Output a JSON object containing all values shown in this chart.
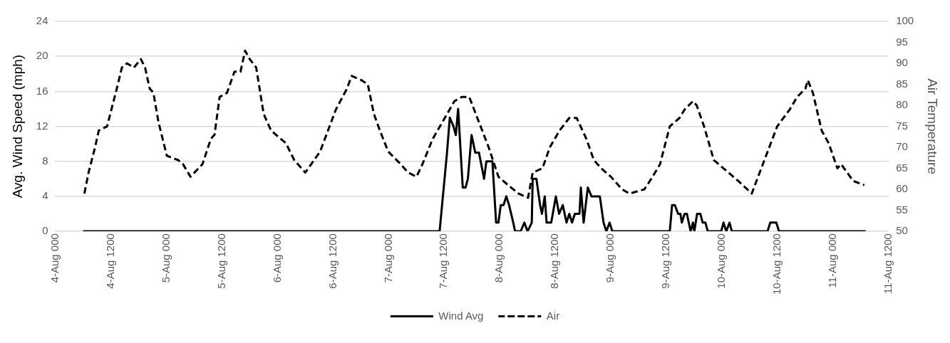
{
  "chart_data": {
    "type": "line",
    "ylabel": "Avg. Wind Speed (mph)",
    "y2label": "Air Temperature",
    "xlim": [
      "--08-04T00:00",
      "--08-11T12:00"
    ],
    "xticks": [
      {
        "value": "--08-04T00:00",
        "label": "4-Aug 000"
      },
      {
        "value": "--08-04T12:00",
        "label": "4-Aug 1200"
      },
      {
        "value": "--08-05T00:00",
        "label": "5-Aug 000"
      },
      {
        "value": "--08-05T12:00",
        "label": "5-Aug 1200"
      },
      {
        "value": "--08-06T00:00",
        "label": "6-Aug 000"
      },
      {
        "value": "--08-06T12:00",
        "label": "6-Aug 1200"
      },
      {
        "value": "--08-07T00:00",
        "label": "7-Aug 000"
      },
      {
        "value": "--08-07T12:00",
        "label": "7-Aug 1200"
      },
      {
        "value": "--08-08T00:00",
        "label": "8-Aug 000"
      },
      {
        "value": "--08-08T12:00",
        "label": "8-Aug 1200"
      },
      {
        "value": "--08-09T00:00",
        "label": "9-Aug 000"
      },
      {
        "value": "--08-09T12:00",
        "label": "9-Aug 1200"
      },
      {
        "value": "--08-10T00:00",
        "label": "10-Aug 000"
      },
      {
        "value": "--08-10T12:00",
        "label": "10-Aug 1200"
      },
      {
        "value": "--08-11T00:00",
        "label": "11-Aug 000"
      },
      {
        "value": "--08-11T12:00",
        "label": "11-Aug 1200"
      }
    ],
    "ylim": [
      0,
      24
    ],
    "yticks": [
      0,
      4,
      8,
      12,
      16,
      20,
      24
    ],
    "y2lim": [
      50,
      100
    ],
    "y2ticks": [
      50,
      55,
      60,
      65,
      70,
      75,
      80,
      85,
      90,
      95,
      100
    ],
    "grid": "y",
    "legend": "bottom",
    "marker": "none",
    "series": [
      {
        "name": "Wind Avg",
        "color": "#000000",
        "line_style": "solid",
        "x": [
          "--08-04T06:00",
          "--08-07T11:00",
          "--08-07T12:36",
          "--08-07T13:12",
          "--08-07T14:00",
          "--08-07T14:30",
          "--08-07T15:00",
          "--08-07T16:00",
          "--08-07T16:36",
          "--08-07T17:06",
          "--08-07T17:54",
          "--08-07T18:42",
          "--08-07T19:30",
          "--08-07T20:36",
          "--08-07T21:06",
          "--08-07T21:54",
          "--08-07T22:24",
          "--08-07T23:12",
          "--08-07T23:42",
          "--08-08T00:12",
          "--08-08T00:48",
          "--08-08T01:24",
          "--08-08T02:00",
          "--08-08T02:54",
          "--08-08T03:18",
          "--08-08T04:30",
          "--08-08T05:18",
          "--08-08T06:00",
          "--08-08T06:54",
          "--08-08T07:06",
          "--08-08T07:54",
          "--08-08T08:42",
          "--08-08T09:06",
          "--08-08T09:42",
          "--08-08T10:06",
          "--08-08T11:06",
          "--08-08T12:06",
          "--08-08T12:48",
          "--08-08T13:36",
          "--08-08T14:24",
          "--08-08T15:00",
          "--08-08T15:36",
          "--08-08T16:12",
          "--08-08T17:12",
          "--08-08T17:30",
          "--08-08T18:06",
          "--08-08T19:00",
          "--08-08T19:48",
          "--08-08T21:36",
          "--08-08T22:24",
          "--08-08T23:00",
          "--08-08T23:42",
          "--08-09T00:18",
          "--08-09T12:42",
          "--08-09T13:12",
          "--08-09T13:48",
          "--08-09T14:30",
          "--08-09T15:00",
          "--08-09T15:18",
          "--08-09T15:54",
          "--08-09T16:24",
          "--08-09T17:12",
          "--08-09T17:42",
          "--08-09T18:00",
          "--08-09T18:36",
          "--08-09T19:18",
          "--08-09T19:48",
          "--08-09T20:24",
          "--08-09T20:54",
          "--08-09T23:48",
          "--08-10T00:18",
          "--08-10T00:54",
          "--08-10T01:36",
          "--08-10T02:06",
          "--08-10T09:48",
          "--08-10T10:24",
          "--08-10T11:42",
          "--08-10T12:18",
          "--08-11T07:00"
        ],
        "values": [
          0,
          0,
          9,
          13,
          12,
          11,
          14,
          5,
          5,
          6,
          11,
          9,
          9,
          6,
          8,
          8,
          8,
          1,
          1,
          3,
          3,
          4,
          3,
          1,
          0,
          0,
          1,
          0,
          1,
          6,
          6,
          3,
          2,
          4,
          1,
          1,
          4,
          2,
          3,
          1,
          2,
          1,
          2,
          2,
          5,
          1,
          5,
          4,
          4,
          1,
          0,
          1,
          0,
          0,
          3,
          3,
          2,
          2,
          1,
          2,
          2,
          0,
          1,
          0,
          2,
          2,
          1,
          1,
          0,
          0,
          1,
          0,
          1,
          0,
          0,
          1,
          1,
          0,
          0
        ]
      },
      {
        "name": "Air",
        "color": "#000000",
        "line_style": "dashed",
        "axis": "y2",
        "x": [
          "--08-04T06:18",
          "--08-04T07:12",
          "--08-04T08:36",
          "--08-04T09:24",
          "--08-04T11:12",
          "--08-04T13:18",
          "--08-04T14:24",
          "--08-04T15:30",
          "--08-04T17:00",
          "--08-04T18:30",
          "--08-04T19:24",
          "--08-04T20:24",
          "--08-04T21:12",
          "--08-04T22:18",
          "--08-05T00:06",
          "--08-05T02:30",
          "--08-05T03:36",
          "--08-05T05:12",
          "--08-05T07:48",
          "--08-05T09:36",
          "--08-05T10:24",
          "--08-05T11:30",
          "--08-05T13:06",
          "--08-05T14:42",
          "--08-05T16:00",
          "--08-05T17:00",
          "--08-05T18:00",
          "--08-05T19:24",
          "--08-05T21:00",
          "--08-05T22:36",
          "--08-06T01:48",
          "--08-06T03:36",
          "--08-06T06:00",
          "--08-06T09:12",
          "--08-06T12:36",
          "--08-06T15:00",
          "--08-06T16:00",
          "--08-06T18:06",
          "--08-06T19:30",
          "--08-06T20:48",
          "--08-06T22:06",
          "--08-06T23:54",
          "--08-07T02:36",
          "--08-07T04:12",
          "--08-07T06:00",
          "--08-07T07:18",
          "--08-07T09:30",
          "--08-07T11:36",
          "--08-07T14:12",
          "--08-07T15:48",
          "--08-07T17:24",
          "--08-07T19:30",
          "--08-07T21:36",
          "--08-07T23:42",
          "--08-08T01:48",
          "--08-08T04:00",
          "--08-08T06:06",
          "--08-08T07:06",
          "--08-08T09:12",
          "--08-08T10:48",
          "--08-08T12:54",
          "--08-08T15:00",
          "--08-08T16:36",
          "--08-08T18:42",
          "--08-08T20:18",
          "--08-08T21:54",
          "--08-09T00:00",
          "--08-09T02:24",
          "--08-09T04:00",
          "--08-09T07:12",
          "--08-09T09:00",
          "--08-09T10:36",
          "--08-09T12:42",
          "--08-09T14:48",
          "--08-09T15:54",
          "--08-09T17:42",
          "--08-09T18:30",
          "--08-09T20:06",
          "--08-09T22:12",
          "--08-10T00:18",
          "--08-10T03:30",
          "--08-10T06:24",
          "--08-10T08:48",
          "--08-10T11:54",
          "--08-10T14:36",
          "--08-10T16:12",
          "--08-10T18:00",
          "--08-10T18:30",
          "--08-10T19:36",
          "--08-10T21:30",
          "--08-10T23:00",
          "--08-11T00:54",
          "--08-11T01:42",
          "--08-11T04:18",
          "--08-11T06:42"
        ],
        "values": [
          59,
          64,
          70,
          74,
          75,
          84,
          89,
          90,
          89,
          91,
          89,
          84,
          83,
          76,
          68,
          67,
          66,
          63,
          66,
          72,
          73,
          82,
          83,
          88,
          88,
          93,
          91,
          89,
          78,
          74,
          71,
          67,
          64,
          69,
          79,
          84,
          87,
          86,
          85,
          78,
          74,
          69,
          66,
          64,
          63,
          66,
          72,
          76,
          81,
          82,
          82,
          76,
          70,
          63,
          61,
          59,
          58,
          64,
          65,
          70,
          74,
          77,
          77,
          72,
          67,
          65,
          63,
          60,
          59,
          60,
          63,
          66,
          75,
          77,
          79,
          81,
          80,
          75,
          67,
          65,
          62,
          59,
          66,
          75,
          79,
          82,
          84,
          86,
          83,
          74,
          71,
          65,
          66,
          62,
          61
        ]
      }
    ]
  }
}
